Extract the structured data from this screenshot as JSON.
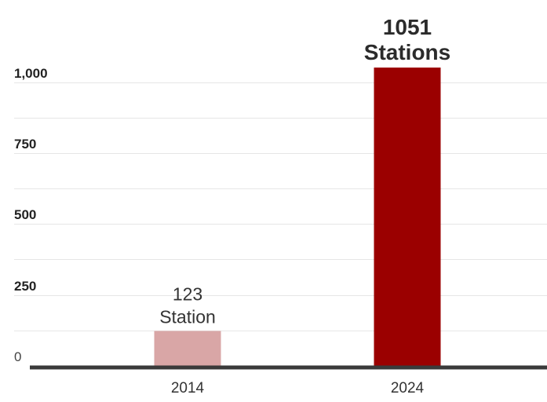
{
  "chart_data": {
    "type": "bar",
    "categories": [
      "2014",
      "2024"
    ],
    "values": [
      123,
      1051
    ],
    "data_labels": [
      [
        "123",
        "Station"
      ],
      [
        "1051",
        "Stations"
      ]
    ],
    "yticks": [
      0,
      250,
      500,
      750,
      1000
    ],
    "ytick_labels": [
      "0",
      "250",
      "500",
      "750",
      "1,000"
    ],
    "ylim": [
      0,
      1100
    ],
    "grid": true,
    "colors": [
      "#d9a6a6",
      "#9b0000"
    ],
    "title": "",
    "xlabel": "",
    "ylabel": ""
  }
}
